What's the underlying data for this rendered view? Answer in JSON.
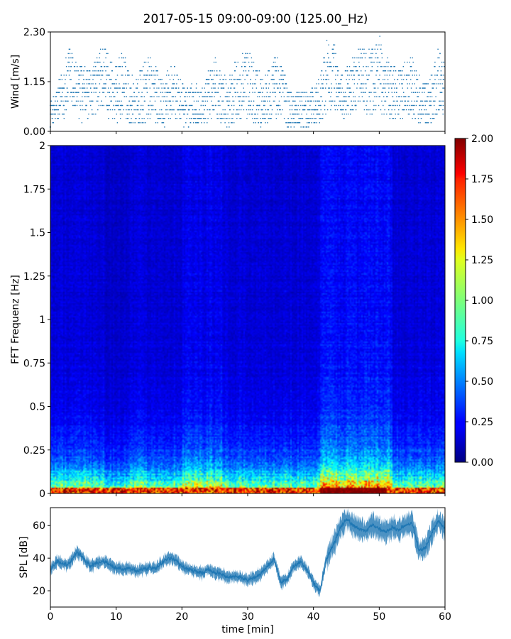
{
  "figure": {
    "title": "2017-05-15 09:00-09:00 (125.00_Hz)"
  },
  "chart_data": [
    {
      "id": "wind",
      "type": "scatter",
      "ylabel": "Wind [m/s]",
      "ylim": [
        0,
        2.3
      ],
      "xlim": [
        0,
        60
      ],
      "yticks": [
        "0.00",
        "1.15",
        "2.30"
      ],
      "ytick_values": [
        0,
        1.15,
        2.3
      ],
      "xticks": [
        0,
        10,
        20,
        30,
        40,
        50,
        60
      ],
      "color": "#1f77b4",
      "quantization_step": 0.1,
      "envelope": {
        "t": [
          0,
          1,
          2,
          3,
          4,
          5,
          6,
          7,
          8,
          9,
          10,
          11,
          12,
          13,
          14,
          15,
          16,
          17,
          18,
          19,
          20,
          21,
          22,
          23,
          24,
          25,
          26,
          27,
          28,
          29,
          30,
          31,
          32,
          33,
          34,
          35,
          36,
          37,
          38,
          39,
          40,
          41,
          42,
          43,
          44,
          45,
          46,
          47,
          48,
          49,
          50,
          51,
          52,
          53,
          54,
          55,
          56,
          57,
          58,
          59,
          60
        ],
        "high": [
          0.7,
          1.0,
          1.5,
          2.0,
          1.6,
          1.5,
          1.4,
          1.7,
          2.1,
          1.8,
          1.5,
          1.9,
          1.4,
          1.2,
          1.5,
          1.8,
          1.5,
          1.3,
          1.4,
          1.6,
          1.1,
          1.0,
          1.2,
          1.0,
          1.4,
          1.7,
          1.4,
          1.2,
          1.6,
          1.8,
          1.9,
          1.7,
          1.3,
          1.4,
          1.7,
          1.7,
          1.2,
          0.8,
          1.0,
          0.9,
          1.0,
          1.3,
          2.1,
          2.1,
          1.4,
          1.5,
          1.8,
          2.0,
          1.9,
          1.9,
          2.3,
          1.7,
          1.6,
          1.5,
          1.6,
          1.7,
          1.3,
          1.1,
          1.3,
          2.0,
          1.7
        ],
        "low": [
          0.1,
          0.2,
          0.3,
          0.5,
          0.3,
          0.2,
          0.3,
          0.4,
          0.5,
          0.3,
          0.2,
          0.3,
          0.2,
          0.1,
          0.1,
          0.2,
          0.2,
          0.1,
          0.2,
          0.3,
          0.1,
          0.1,
          0.2,
          0.1,
          0.2,
          0.3,
          0.2,
          0.1,
          0.2,
          0.3,
          0.3,
          0.2,
          0.1,
          0.2,
          0.3,
          0.3,
          0.1,
          0.1,
          0.1,
          0.1,
          0.1,
          0.2,
          0.4,
          0.5,
          0.3,
          0.3,
          0.4,
          0.5,
          0.4,
          0.4,
          0.5,
          0.3,
          0.3,
          0.3,
          0.3,
          0.3,
          0.1,
          0.1,
          0.1,
          0.4,
          0.3
        ]
      }
    },
    {
      "id": "spectrogram",
      "type": "heatmap",
      "ylabel": "FFT Frequenz [Hz]",
      "xlim": [
        0,
        60
      ],
      "ylim": [
        0,
        2
      ],
      "yticks": [
        "0",
        "0.25",
        "0.5",
        "0.75",
        "1",
        "1.25",
        "1.5",
        "1.75",
        "2"
      ],
      "ytick_values": [
        0,
        0.25,
        0.5,
        0.75,
        1,
        1.25,
        1.5,
        1.75,
        2
      ],
      "colormap": "jet",
      "colorbar": {
        "range": [
          0,
          2
        ],
        "ticks": [
          "0.00",
          "0.25",
          "0.50",
          "0.75",
          "1.00",
          "1.25",
          "1.50",
          "1.75",
          "2.00"
        ],
        "tick_values": [
          0,
          0.25,
          0.5,
          0.75,
          1,
          1.25,
          1.5,
          1.75,
          2
        ]
      }
    },
    {
      "id": "spl",
      "type": "line",
      "ylabel": "SPL [dB]",
      "xlabel": "time [min]",
      "xlim": [
        0,
        60
      ],
      "ylim": [
        10,
        71
      ],
      "yticks": [
        "20",
        "40",
        "60"
      ],
      "ytick_values": [
        20,
        40,
        60
      ],
      "xticks": [
        "0",
        "10",
        "20",
        "30",
        "40",
        "50",
        "60"
      ],
      "xtick_values": [
        0,
        10,
        20,
        30,
        40,
        50,
        60
      ],
      "color": "#1f77b4",
      "x": [
        0,
        1,
        2,
        3,
        4,
        5,
        6,
        7,
        8,
        9,
        10,
        11,
        12,
        13,
        14,
        15,
        16,
        17,
        18,
        19,
        20,
        21,
        22,
        23,
        24,
        25,
        26,
        27,
        28,
        29,
        30,
        31,
        32,
        33,
        34,
        35,
        36,
        37,
        38,
        39,
        40,
        41,
        42,
        43,
        44,
        45,
        46,
        47,
        48,
        49,
        50,
        51,
        52,
        53,
        54,
        55,
        56,
        57,
        58,
        59,
        60
      ],
      "y": [
        33,
        38,
        36,
        37,
        44,
        40,
        35,
        37,
        38,
        36,
        34,
        33,
        34,
        32,
        33,
        34,
        34,
        37,
        40,
        39,
        35,
        33,
        32,
        31,
        33,
        31,
        30,
        28,
        29,
        28,
        27,
        28,
        30,
        35,
        40,
        25,
        27,
        35,
        38,
        33,
        25,
        20,
        40,
        48,
        58,
        64,
        60,
        58,
        57,
        61,
        58,
        56,
        59,
        57,
        60,
        62,
        45,
        46,
        55,
        63,
        58
      ]
    }
  ]
}
